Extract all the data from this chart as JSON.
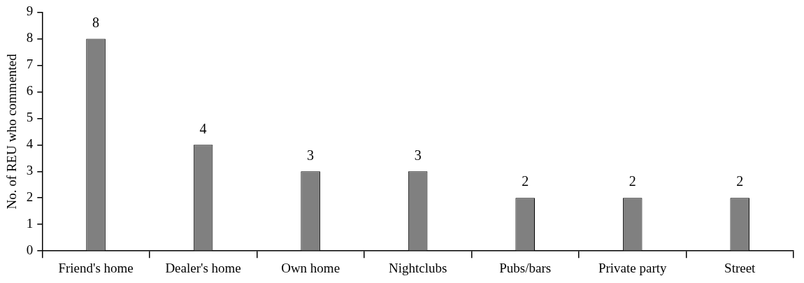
{
  "chart_data": {
    "type": "bar",
    "categories": [
      "Friend's home",
      "Dealer's home",
      "Own home",
      "Nightclubs",
      "Pubs/bars",
      "Private party",
      "Street"
    ],
    "values": [
      8,
      4,
      3,
      3,
      2,
      2,
      2
    ],
    "color": "#808080",
    "ylabel": "No. of REU who commented",
    "ylim": [
      0,
      9
    ],
    "yticks": [
      0,
      1,
      2,
      3,
      4,
      5,
      6,
      7,
      8,
      9
    ],
    "grid": false,
    "legend": false,
    "data_labels": true
  }
}
